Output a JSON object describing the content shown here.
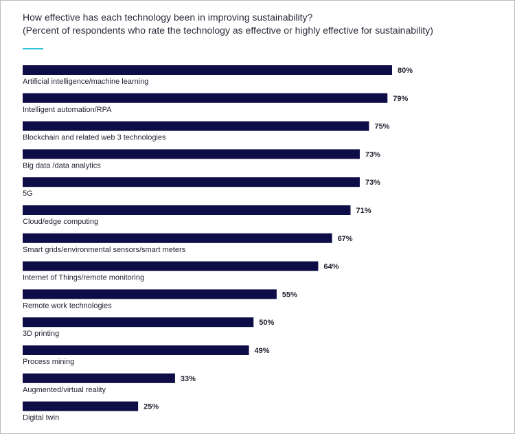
{
  "colors": {
    "bar": "#0d0d47",
    "accent": "#2ec4d6",
    "text": "#1f1f2e"
  },
  "chart_data": {
    "type": "bar",
    "orientation": "horizontal",
    "title": "How effective has each technology been in improving sustainability?",
    "subtitle": "(Percent of respondents who rate the technology as effective or highly effective for sustainability)",
    "value_suffix": "%",
    "categories": [
      "Artificial intelligence/machine learning",
      "Intelligent automation/RPA",
      "Blockchain and related web 3 technologies",
      "Big data /data analytics",
      "5G",
      "Cloud/edge computing",
      "Smart grids/environmental sensors/smart meters",
      "Internet of Things/remote monitoring",
      "Remote work technologies",
      "3D printing",
      "Process mining",
      "Augmented/virtual reality",
      "Digital twin"
    ],
    "values": [
      80,
      79,
      75,
      73,
      73,
      71,
      67,
      64,
      55,
      50,
      49,
      33,
      25
    ],
    "xlim": [
      0,
      100
    ]
  }
}
